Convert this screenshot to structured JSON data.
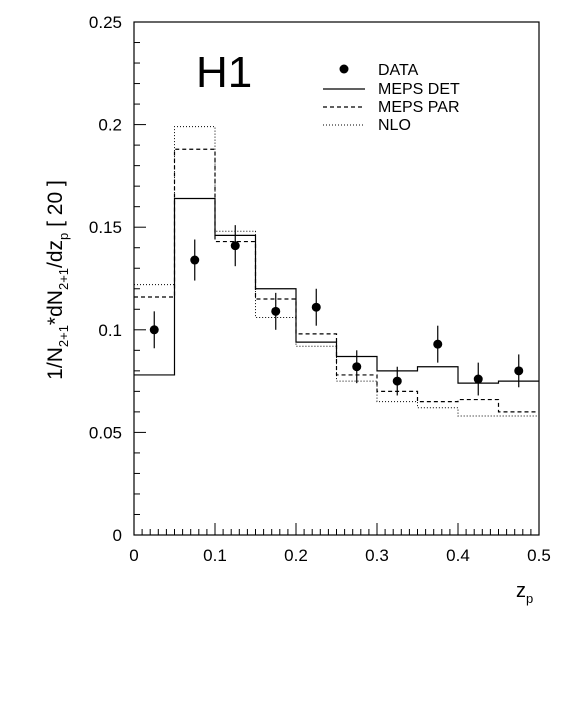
{
  "chart_data": {
    "type": "line",
    "experiment_label": "H1",
    "xlabel_main": "z",
    "xlabel_sub": "p",
    "ylabel": "1/N2+1*dN2+1/dzp [ 20 ]",
    "ylabel_parts": {
      "p1": "1/N",
      "s1": "2+1",
      "p2": "*dN",
      "s2": "2+1",
      "p3": "/dz",
      "s3": "p",
      "p4": " [ 20 ]"
    },
    "xlim": [
      0,
      0.5
    ],
    "ylim": [
      0,
      0.25
    ],
    "x_ticks": [
      "0",
      "0.1",
      "0.2",
      "0.3",
      "0.4",
      "0.5"
    ],
    "y_ticks": [
      "0",
      "0.05",
      "0.1",
      "0.15",
      "0.2",
      "0.25"
    ],
    "grid": false,
    "legend_position": "top-right",
    "bin_edges": [
      0,
      0.05,
      0.1,
      0.15,
      0.2,
      0.25,
      0.3,
      0.35,
      0.4,
      0.45,
      0.5
    ],
    "points": {
      "name": "DATA",
      "x": [
        0.025,
        0.075,
        0.125,
        0.175,
        0.225,
        0.275,
        0.325,
        0.375,
        0.425,
        0.475
      ],
      "y": [
        0.1,
        0.134,
        0.141,
        0.109,
        0.111,
        0.082,
        0.075,
        0.093,
        0.076,
        0.08
      ],
      "err": [
        0.009,
        0.01,
        0.01,
        0.009,
        0.009,
        0.008,
        0.007,
        0.009,
        0.008,
        0.008
      ]
    },
    "series": [
      {
        "name": "MEPS DET",
        "style": "solid",
        "values": [
          0.078,
          0.164,
          0.146,
          0.12,
          0.094,
          0.087,
          0.08,
          0.082,
          0.074,
          0.075
        ]
      },
      {
        "name": "MEPS PAR",
        "style": "dashed",
        "values": [
          0.116,
          0.188,
          0.143,
          0.115,
          0.098,
          0.078,
          0.07,
          0.065,
          0.066,
          0.06
        ]
      },
      {
        "name": "NLO",
        "style": "dotted",
        "values": [
          0.122,
          0.199,
          0.148,
          0.106,
          0.092,
          0.075,
          0.065,
          0.062,
          0.058,
          0.058
        ]
      }
    ]
  }
}
